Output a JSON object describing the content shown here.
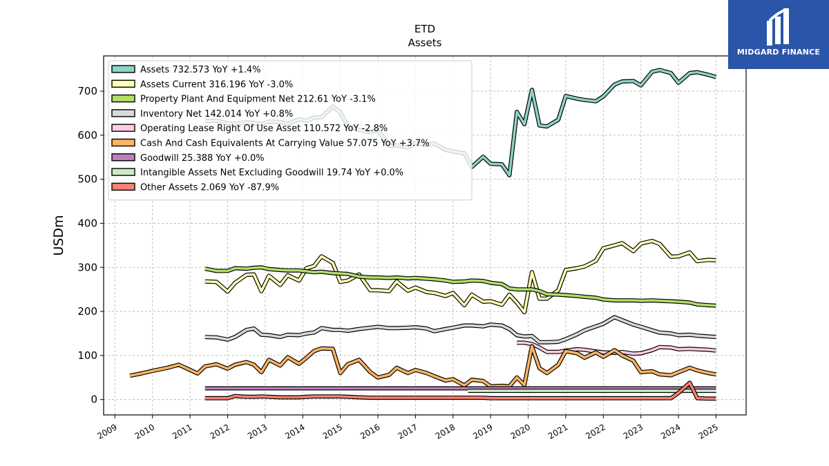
{
  "brand": {
    "name": "MIDGARD FINANCE",
    "bg": "#2a55a8"
  },
  "chart_data": {
    "type": "line",
    "title": "ETD",
    "subtitle": "Assets",
    "ylabel": "USDm",
    "xlim": [
      2008.7,
      2025.8
    ],
    "ylim": [
      -35,
      780
    ],
    "yticks": [
      0,
      100,
      200,
      300,
      400,
      500,
      600,
      700
    ],
    "xticks": [
      2009,
      2010,
      2011,
      2012,
      2013,
      2014,
      2015,
      2016,
      2017,
      2018,
      2019,
      2020,
      2021,
      2022,
      2023,
      2024,
      2025
    ],
    "grid": true,
    "legend_position": "top-left",
    "series": [
      {
        "name": "Assets",
        "legend": "Assets  732.573 YoY +1.4%",
        "color": "#8dd3c7",
        "x": [
          2011.4,
          2011.7,
          2012.0,
          2012.2,
          2012.5,
          2012.7,
          2012.9,
          2013.1,
          2013.4,
          2013.6,
          2013.9,
          2014.1,
          2014.3,
          2014.5,
          2014.8,
          2015.0,
          2015.2,
          2015.5,
          2015.8,
          2016.0,
          2016.3,
          2016.5,
          2016.8,
          2017.0,
          2017.3,
          2017.5,
          2017.8,
          2018.0,
          2018.3,
          2018.5,
          2018.8,
          2019.0,
          2019.3,
          2019.5,
          2019.7,
          2019.9,
          2020.1,
          2020.3,
          2020.5,
          2020.8,
          2021.0,
          2021.3,
          2021.5,
          2021.8,
          2022.0,
          2022.3,
          2022.5,
          2022.8,
          2023.0,
          2023.3,
          2023.5,
          2023.8,
          2024.0,
          2024.3,
          2024.5,
          2024.8,
          2025.0
        ],
        "y": [
          632,
          633,
          627,
          626,
          629,
          628,
          625,
          631,
          630,
          626,
          636,
          633,
          640,
          641,
          665,
          652,
          620,
          612,
          607,
          612,
          576,
          577,
          572,
          582,
          578,
          581,
          567,
          563,
          559,
          528,
          551,
          535,
          534,
          509,
          653,
          625,
          703,
          622,
          620,
          635,
          689,
          683,
          680,
          677,
          688,
          715,
          722,
          723,
          713,
          744,
          748,
          741,
          719,
          741,
          743,
          737,
          732
        ]
      },
      {
        "name": "Assets Current",
        "legend": "Assets Current  316.196 YoY -3.0%",
        "color": "#ffffb3",
        "x": [
          2011.4,
          2011.7,
          2012.0,
          2012.2,
          2012.5,
          2012.7,
          2012.9,
          2013.1,
          2013.4,
          2013.6,
          2013.9,
          2014.1,
          2014.3,
          2014.5,
          2014.8,
          2015.0,
          2015.2,
          2015.5,
          2015.8,
          2016.0,
          2016.3,
          2016.5,
          2016.8,
          2017.0,
          2017.3,
          2017.5,
          2017.8,
          2018.0,
          2018.3,
          2018.5,
          2018.8,
          2019.0,
          2019.3,
          2019.5,
          2019.7,
          2019.9,
          2020.1,
          2020.3,
          2020.5,
          2020.8,
          2021.0,
          2021.3,
          2021.5,
          2021.8,
          2022.0,
          2022.3,
          2022.5,
          2022.8,
          2023.0,
          2023.3,
          2023.5,
          2023.8,
          2024.0,
          2024.3,
          2024.5,
          2024.8,
          2025.0
        ],
        "y": [
          268,
          267,
          245,
          265,
          283,
          284,
          246,
          281,
          260,
          282,
          270,
          298,
          303,
          325,
          310,
          267,
          270,
          284,
          248,
          248,
          246,
          268,
          247,
          254,
          244,
          242,
          235,
          242,
          214,
          238,
          222,
          223,
          215,
          238,
          220,
          198,
          289,
          229,
          229,
          248,
          294,
          298,
          302,
          315,
          343,
          350,
          355,
          337,
          354,
          360,
          353,
          324,
          325,
          334,
          314,
          317,
          316
        ]
      },
      {
        "name": "Property Plant And Equipment Net",
        "legend": "Property Plant And Equipment Net  212.61 YoY -3.1%",
        "color": "#b3de69",
        "x": [
          2011.4,
          2011.7,
          2012.0,
          2012.2,
          2012.5,
          2012.7,
          2012.9,
          2013.1,
          2013.4,
          2013.6,
          2013.9,
          2014.1,
          2014.3,
          2014.5,
          2014.8,
          2015.0,
          2015.2,
          2015.5,
          2015.8,
          2016.0,
          2016.3,
          2016.5,
          2016.8,
          2017.0,
          2017.3,
          2017.5,
          2017.8,
          2018.0,
          2018.3,
          2018.5,
          2018.8,
          2019.0,
          2019.3,
          2019.5,
          2019.7,
          2019.9,
          2020.1,
          2020.3,
          2020.5,
          2020.8,
          2021.0,
          2021.3,
          2021.5,
          2021.8,
          2022.0,
          2022.3,
          2022.5,
          2022.8,
          2023.0,
          2023.3,
          2023.5,
          2023.8,
          2024.0,
          2024.3,
          2024.5,
          2024.8,
          2025.0
        ],
        "y": [
          297,
          292,
          292,
          298,
          297,
          299,
          300,
          296,
          294,
          293,
          293,
          291,
          289,
          290,
          287,
          286,
          285,
          279,
          277,
          277,
          276,
          277,
          275,
          276,
          274,
          273,
          270,
          267,
          268,
          270,
          269,
          265,
          262,
          252,
          250,
          250,
          250,
          246,
          239,
          238,
          237,
          235,
          233,
          231,
          227,
          225,
          225,
          225,
          224,
          225,
          224,
          223,
          222,
          220,
          216,
          214,
          213
        ]
      },
      {
        "name": "Inventory Net",
        "legend": "Inventory Net  142.014 YoY +0.8%",
        "color": "#d9d9d9",
        "x": [
          2011.4,
          2011.7,
          2012.0,
          2012.2,
          2012.5,
          2012.7,
          2012.9,
          2013.1,
          2013.4,
          2013.6,
          2013.9,
          2014.1,
          2014.3,
          2014.5,
          2014.8,
          2015.0,
          2015.2,
          2015.5,
          2015.8,
          2016.0,
          2016.3,
          2016.5,
          2016.8,
          2017.0,
          2017.3,
          2017.5,
          2017.8,
          2018.0,
          2018.3,
          2018.5,
          2018.8,
          2019.0,
          2019.3,
          2019.5,
          2019.7,
          2019.9,
          2020.1,
          2020.3,
          2020.5,
          2020.8,
          2021.0,
          2021.3,
          2021.5,
          2021.8,
          2022.0,
          2022.3,
          2022.5,
          2022.8,
          2023.0,
          2023.3,
          2023.5,
          2023.8,
          2024.0,
          2024.3,
          2024.5,
          2024.8,
          2025.0
        ],
        "y": [
          142,
          141,
          136,
          142,
          158,
          161,
          147,
          146,
          142,
          147,
          146,
          150,
          152,
          162,
          158,
          158,
          156,
          160,
          163,
          165,
          162,
          162,
          163,
          164,
          161,
          155,
          160,
          163,
          168,
          168,
          166,
          170,
          168,
          160,
          146,
          143,
          144,
          130,
          130,
          131,
          137,
          148,
          157,
          166,
          172,
          187,
          180,
          170,
          165,
          157,
          152,
          150,
          146,
          147,
          145,
          143,
          142
        ]
      },
      {
        "name": "Operating Lease Right Of Use Asset",
        "legend": "Operating Lease Right Of Use Asset  110.572 YoY -2.8%",
        "color": "#fccde5",
        "x": [
          2019.7,
          2019.9,
          2020.1,
          2020.3,
          2020.5,
          2020.8,
          2021.0,
          2021.3,
          2021.5,
          2021.8,
          2022.0,
          2022.3,
          2022.5,
          2022.8,
          2023.0,
          2023.3,
          2023.5,
          2023.8,
          2024.0,
          2024.3,
          2024.5,
          2024.8,
          2025.0
        ],
        "y": [
          129,
          129,
          126,
          118,
          108,
          108,
          111,
          114,
          113,
          109,
          107,
          106,
          108,
          104,
          105,
          112,
          119,
          118,
          114,
          115,
          114,
          113,
          111
        ]
      },
      {
        "name": "Cash And Cash Equivalents At Carrying Value",
        "legend": "Cash And Cash Equivalents At Carrying Value  57.075 YoY +3.7%",
        "color": "#fdb462",
        "x": [
          2009.4,
          2009.7,
          2010.0,
          2010.4,
          2010.7,
          2011.0,
          2011.2,
          2011.4,
          2011.7,
          2012.0,
          2012.2,
          2012.5,
          2012.7,
          2012.9,
          2013.1,
          2013.4,
          2013.6,
          2013.9,
          2014.1,
          2014.3,
          2014.5,
          2014.8,
          2015.0,
          2015.2,
          2015.5,
          2015.8,
          2016.0,
          2016.3,
          2016.5,
          2016.8,
          2017.0,
          2017.3,
          2017.5,
          2017.8,
          2018.0,
          2018.3,
          2018.5,
          2018.8,
          2019.0,
          2019.3,
          2019.5,
          2019.7,
          2019.9,
          2020.1,
          2020.3,
          2020.5,
          2020.8,
          2021.0,
          2021.3,
          2021.5,
          2021.8,
          2022.0,
          2022.3,
          2022.5,
          2022.8,
          2023.0,
          2023.3,
          2023.5,
          2023.8,
          2024.0,
          2024.3,
          2024.5,
          2024.8,
          2025.0
        ],
        "y": [
          54,
          59,
          65,
          72,
          79,
          67,
          59,
          75,
          80,
          70,
          79,
          85,
          79,
          62,
          90,
          77,
          96,
          81,
          95,
          110,
          116,
          115,
          60,
          80,
          90,
          62,
          50,
          56,
          72,
          60,
          67,
          60,
          53,
          43,
          46,
          32,
          45,
          42,
          30,
          31,
          30,
          50,
          33,
          121,
          71,
          60,
          79,
          110,
          105,
          95,
          107,
          97,
          112,
          100,
          88,
          62,
          64,
          57,
          55,
          62,
          72,
          66,
          60,
          57
        ]
      },
      {
        "name": "Goodwill",
        "legend": "Goodwill  25.388 YoY +0.0%",
        "color": "#bc80bd",
        "x": [
          2011.4,
          2025.0
        ],
        "y": [
          25.388,
          25.388
        ]
      },
      {
        "name": "Intangible Assets Net Excluding Goodwill",
        "legend": "Intangible Assets Net Excluding Goodwill  19.74 YoY +0.0%",
        "color": "#ccebc5",
        "x": [
          2018.4,
          2025.0
        ],
        "y": [
          19.74,
          19.74
        ]
      },
      {
        "name": "Other Assets",
        "legend": "Other Assets  2.069 YoY -87.9%",
        "color": "#fb8072",
        "x": [
          2011.4,
          2011.7,
          2012.0,
          2012.2,
          2012.5,
          2012.7,
          2012.9,
          2013.1,
          2013.4,
          2013.6,
          2013.9,
          2014.1,
          2014.3,
          2014.5,
          2014.8,
          2015.0,
          2015.2,
          2015.5,
          2015.8,
          2016.0,
          2016.3,
          2016.5,
          2016.8,
          2017.0,
          2017.3,
          2017.5,
          2017.8,
          2018.0,
          2018.3,
          2018.5,
          2018.8,
          2019.0,
          2019.3,
          2019.5,
          2019.7,
          2019.9,
          2020.1,
          2020.3,
          2020.5,
          2020.8,
          2021.0,
          2021.3,
          2021.5,
          2021.8,
          2022.0,
          2022.3,
          2022.5,
          2022.8,
          2023.0,
          2023.3,
          2023.5,
          2023.8,
          2024.0,
          2024.3,
          2024.5,
          2024.8,
          2025.0
        ],
        "y": [
          3,
          3,
          3,
          8,
          6,
          6,
          7,
          6,
          5,
          5,
          5,
          6,
          7,
          7,
          7,
          7,
          6,
          5,
          4,
          4,
          4,
          4,
          4,
          4,
          4,
          4,
          4,
          4,
          4,
          4,
          4,
          3,
          3,
          3,
          3,
          3,
          3,
          3,
          3,
          3,
          3,
          3,
          3,
          3,
          3,
          3,
          3,
          3,
          3,
          3,
          3,
          3,
          15,
          38,
          3,
          2,
          2
        ]
      }
    ]
  }
}
